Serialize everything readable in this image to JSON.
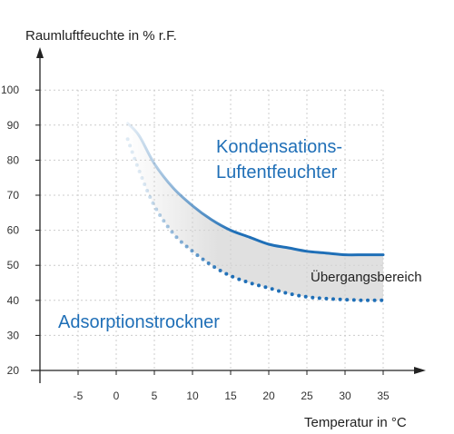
{
  "chart_data": {
    "type": "area",
    "ylabel": "Raumluftfeuchte in % r.F.",
    "xlabel": "Temperatur in °C",
    "xlim": [
      -10,
      35
    ],
    "ylim": [
      20,
      105
    ],
    "x_ticks": [
      -5,
      0,
      5,
      10,
      15,
      20,
      25,
      30,
      35
    ],
    "y_ticks": [
      20,
      30,
      40,
      50,
      60,
      70,
      80,
      90,
      100
    ],
    "grid": "dashed",
    "series": [
      {
        "name": "Kondensations-Luftentfeuchter",
        "style": "solid",
        "x": [
          1.5,
          3,
          5,
          7.5,
          10,
          12.5,
          15,
          17.5,
          20,
          22.5,
          25,
          27.5,
          30,
          32.5,
          35
        ],
        "values": [
          90.5,
          87,
          79,
          72,
          67,
          63,
          60,
          58,
          56,
          55,
          54,
          53.5,
          53,
          53,
          53
        ]
      },
      {
        "name": "Adsorptionstrockner",
        "style": "dotted",
        "x": [
          1.5,
          3,
          5,
          7.5,
          10,
          12.5,
          15,
          17.5,
          20,
          22.5,
          25,
          27.5,
          30,
          32.5,
          35
        ],
        "values": [
          86,
          77,
          67,
          59,
          54,
          50,
          47,
          45,
          43.5,
          42,
          41,
          40.5,
          40.2,
          40,
          40
        ]
      }
    ],
    "band_label": "Übergangsbereich",
    "colors": {
      "line": "#1f6fb7",
      "band": "#d3d3d3",
      "grid": "#cccccc",
      "axis": "#222222"
    }
  }
}
